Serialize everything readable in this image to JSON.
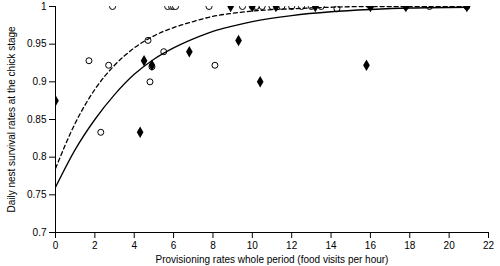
{
  "chart_data": {
    "type": "scatter",
    "x_label": "Provisioning rates whole period (food visits per hour)",
    "y_label": "Daily nest survival rates at the chick stage",
    "xlim": [
      0,
      22
    ],
    "xticks": [
      0,
      2,
      4,
      6,
      8,
      10,
      12,
      14,
      16,
      18,
      20,
      22
    ],
    "ylim": [
      0.7,
      1
    ],
    "yticks": [
      0.7,
      0.75,
      0.8,
      0.85,
      0.9,
      0.95,
      1
    ],
    "grid": false,
    "series": [
      {
        "type": "scatter",
        "marker": "circle_open",
        "color": "#000000",
        "x": [
          1.7,
          2.3,
          2.7,
          2.9,
          4.7,
          4.8,
          4.9,
          5.5,
          5.7,
          5.9,
          6.0,
          6.1,
          7.8,
          8.1,
          9.5,
          10.0,
          10.2,
          10.5,
          11.0,
          11.5,
          12.0,
          12.5,
          13.0,
          13.5,
          14.3,
          16.0,
          17.8,
          19.0,
          20.9
        ],
        "values": [
          0.928,
          0.833,
          0.922,
          1,
          0.955,
          0.9,
          0.92,
          0.94,
          1,
          1,
          1,
          1,
          1,
          0.922,
          1,
          1,
          1,
          1,
          1,
          1,
          1,
          1,
          1,
          1,
          0.997,
          1,
          1,
          1,
          1
        ]
      },
      {
        "type": "scatter",
        "marker": "diamond",
        "color": "#000000",
        "x": [
          0,
          4.3,
          4.5,
          4.9,
          6.8,
          8.9,
          9.3,
          10.0,
          10.4,
          11.2,
          13.2,
          15.8,
          16.0,
          17.8,
          20.9
        ],
        "values": [
          0.875,
          0.833,
          0.928,
          0.922,
          0.94,
          1,
          0.955,
          1,
          0.9,
          1,
          1,
          0.922,
          1,
          1,
          1
        ]
      },
      {
        "type": "line",
        "line_style": "dashed",
        "color": "#000000",
        "x": [
          0,
          1,
          2,
          3,
          4,
          5,
          6,
          7,
          8,
          9,
          10,
          12,
          14,
          16,
          18,
          20.9
        ],
        "values": [
          0.785,
          0.845,
          0.89,
          0.922,
          0.945,
          0.961,
          0.972,
          0.98,
          0.987,
          0.991,
          0.994,
          0.997,
          0.999,
          1,
          1,
          1
        ]
      },
      {
        "type": "line",
        "line_style": "solid",
        "color": "#000000",
        "x": [
          0,
          1,
          2,
          3,
          4,
          5,
          6,
          7,
          8,
          9,
          10,
          12,
          14,
          16,
          18,
          20.9
        ],
        "values": [
          0.76,
          0.81,
          0.85,
          0.883,
          0.91,
          0.93,
          0.945,
          0.957,
          0.967,
          0.974,
          0.98,
          0.988,
          0.993,
          0.996,
          0.998,
          0.999
        ]
      }
    ]
  }
}
